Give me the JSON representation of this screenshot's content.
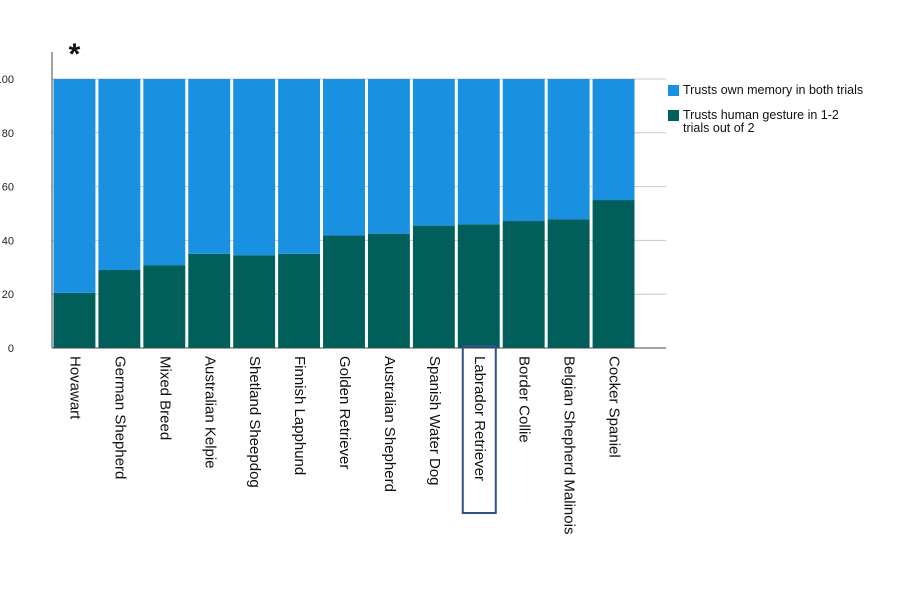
{
  "chart_data": {
    "type": "bar",
    "stacked": true,
    "categories": [
      "Hovawart",
      "German Shepherd",
      "Mixed Breed",
      "Australian Kelpie",
      "Shetland Sheepdog",
      "Finnish Lapphund",
      "Golden Retriever",
      "Australian Shepherd",
      "Spanish Water Dog",
      "Labrador Retriever",
      "Border Collie",
      "Belgian Shepherd Malinois",
      "Cocker Spaniel"
    ],
    "series": [
      {
        "name": "Trusts human gesture in 1-2 trials out of 2",
        "color": "#005f5b",
        "values": [
          20.5,
          29,
          30.8,
          35,
          34.5,
          35,
          41.8,
          42.5,
          45.5,
          46,
          47.2,
          47.8,
          55
        ]
      },
      {
        "name": "Trusts own memory in both trials",
        "color": "#1990e0",
        "values": [
          79.5,
          71,
          69.2,
          65,
          65.5,
          65,
          58.2,
          57.5,
          54.5,
          54,
          52.8,
          52.2,
          45
        ]
      }
    ],
    "legend_order": [
      1,
      0
    ],
    "yticks": [
      "0",
      "20",
      "40",
      "60",
      "80",
      "100"
    ],
    "ylim": [
      0,
      100
    ],
    "grid": true,
    "legend_position": "right",
    "highlighted_category": "Labrador Retriever",
    "annotation": "*",
    "annotation_category": "Hovawart"
  }
}
